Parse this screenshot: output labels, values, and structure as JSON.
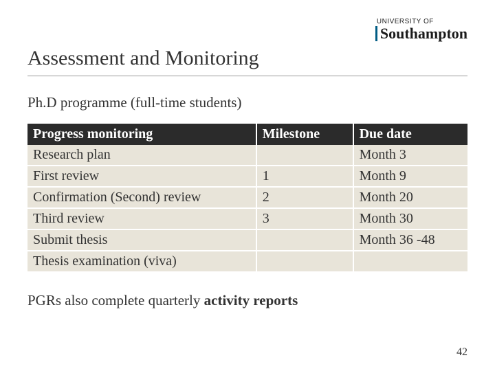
{
  "logo": {
    "line1": "UNIVERSITY OF",
    "line2": "Southampton"
  },
  "title": "Assessment and Monitoring",
  "subtitle": "Ph.D programme (full-time students)",
  "table": {
    "columns": [
      "Progress monitoring",
      "Milestone",
      "Due date"
    ],
    "rows": [
      [
        "Research plan",
        "",
        "Month 3"
      ],
      [
        "First review",
        "1",
        "Month 9"
      ],
      [
        "Confirmation (Second) review",
        "2",
        "Month 20"
      ],
      [
        "Third review",
        "3",
        "Month 30"
      ],
      [
        "Submit thesis",
        "",
        "Month 36 -48"
      ],
      [
        "Thesis examination (viva)",
        "",
        ""
      ]
    ],
    "header_bg": "#2b2b2b",
    "header_fg": "#ffffff",
    "cell_bg": "#e8e4d9",
    "cell_fg": "#333333",
    "col_widths_pct": [
      52,
      22,
      26
    ],
    "font_size_pt": 20
  },
  "footnote_prefix": "PGRs also complete quarterly ",
  "footnote_bold": "activity reports",
  "page_number": "42",
  "colors": {
    "background": "#ffffff",
    "text": "#333333",
    "divider": "#999999",
    "logo_accent": "#005c84"
  }
}
